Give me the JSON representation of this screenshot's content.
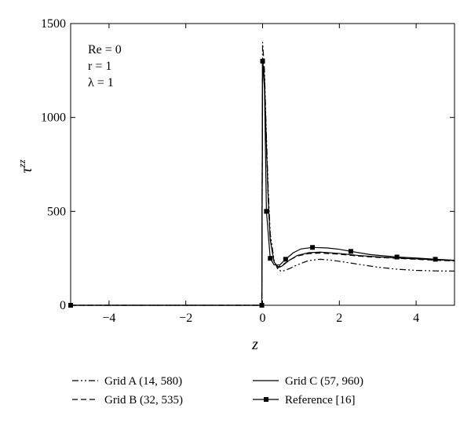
{
  "chart_data": {
    "type": "line",
    "xlabel": "z",
    "ylabel": "τ^zz",
    "xlim": [
      -5,
      5
    ],
    "ylim": [
      0,
      1500
    ],
    "xticks": [
      -4,
      -2,
      0,
      2,
      4
    ],
    "yticks": [
      0,
      500,
      1000,
      1500
    ],
    "xtick_labels": [
      "−4",
      "−2",
      "0",
      "2",
      "4"
    ],
    "ytick_labels": [
      "0",
      "500",
      "1000",
      "1500"
    ],
    "grid": false,
    "annotations": [
      {
        "text": "Re = 0"
      },
      {
        "text": "r = 1"
      },
      {
        "text": "λ = 1"
      }
    ],
    "legend_position": "bottom",
    "series": [
      {
        "name": "Grid A (14, 580)",
        "style": "dash-dot-dot",
        "color": "#000000",
        "points": [
          [
            -5,
            0
          ],
          [
            -0.02,
            0
          ],
          [
            0,
            1400
          ],
          [
            0.05,
            1250
          ],
          [
            0.1,
            900
          ],
          [
            0.15,
            600
          ],
          [
            0.2,
            380
          ],
          [
            0.3,
            240
          ],
          [
            0.4,
            190
          ],
          [
            0.5,
            180
          ],
          [
            0.7,
            195
          ],
          [
            0.9,
            215
          ],
          [
            1.2,
            238
          ],
          [
            1.5,
            245
          ],
          [
            1.8,
            240
          ],
          [
            2.2,
            228
          ],
          [
            2.6,
            215
          ],
          [
            3.0,
            203
          ],
          [
            3.5,
            192
          ],
          [
            4.0,
            186
          ],
          [
            4.5,
            183
          ],
          [
            5.0,
            182
          ]
        ]
      },
      {
        "name": "Grid B (32, 535)",
        "style": "dashed",
        "color": "#000000",
        "points": [
          [
            -5,
            0
          ],
          [
            -0.02,
            0
          ],
          [
            0,
            1320
          ],
          [
            0.05,
            1200
          ],
          [
            0.1,
            850
          ],
          [
            0.15,
            550
          ],
          [
            0.2,
            350
          ],
          [
            0.3,
            230
          ],
          [
            0.4,
            205
          ],
          [
            0.5,
            212
          ],
          [
            0.7,
            240
          ],
          [
            0.9,
            262
          ],
          [
            1.2,
            275
          ],
          [
            1.5,
            278
          ],
          [
            2.0,
            272
          ],
          [
            2.5,
            262
          ],
          [
            3.0,
            255
          ],
          [
            3.5,
            250
          ],
          [
            4.0,
            245
          ],
          [
            4.5,
            240
          ],
          [
            5.0,
            236
          ]
        ]
      },
      {
        "name": "Grid C (57, 960)",
        "style": "solid",
        "color": "#000000",
        "points": [
          [
            -5,
            0
          ],
          [
            -0.02,
            0
          ],
          [
            0,
            1310
          ],
          [
            0.05,
            1200
          ],
          [
            0.1,
            850
          ],
          [
            0.15,
            550
          ],
          [
            0.2,
            350
          ],
          [
            0.3,
            230
          ],
          [
            0.4,
            200
          ],
          [
            0.5,
            208
          ],
          [
            0.7,
            240
          ],
          [
            0.9,
            265
          ],
          [
            1.2,
            280
          ],
          [
            1.5,
            283
          ],
          [
            2.0,
            276
          ],
          [
            2.5,
            265
          ],
          [
            3.0,
            258
          ],
          [
            3.5,
            252
          ],
          [
            4.0,
            247
          ],
          [
            4.5,
            242
          ],
          [
            5.0,
            238
          ]
        ]
      },
      {
        "name": "Reference [16]",
        "style": "solid-square-markers",
        "color": "#000000",
        "points": [
          [
            -5,
            0
          ],
          [
            -0.02,
            0
          ],
          [
            0,
            1300
          ],
          [
            0.05,
            1150
          ],
          [
            0.1,
            500
          ],
          [
            0.2,
            250
          ],
          [
            0.3,
            215
          ],
          [
            0.45,
            215
          ],
          [
            0.6,
            245
          ],
          [
            0.8,
            280
          ],
          [
            1.0,
            300
          ],
          [
            1.3,
            308
          ],
          [
            1.7,
            305
          ],
          [
            2.0,
            298
          ],
          [
            2.3,
            287
          ],
          [
            2.8,
            270
          ],
          [
            3.5,
            257
          ],
          [
            4.0,
            252
          ],
          [
            4.5,
            245
          ],
          [
            5.0,
            240
          ]
        ],
        "marker_points": [
          [
            -5,
            0
          ],
          [
            -0.02,
            0
          ],
          [
            0,
            1300
          ],
          [
            0.1,
            500
          ],
          [
            0.2,
            250
          ],
          [
            0.6,
            245
          ],
          [
            1.3,
            308
          ],
          [
            2.3,
            287
          ],
          [
            3.5,
            257
          ],
          [
            4.5,
            245
          ]
        ]
      }
    ]
  }
}
